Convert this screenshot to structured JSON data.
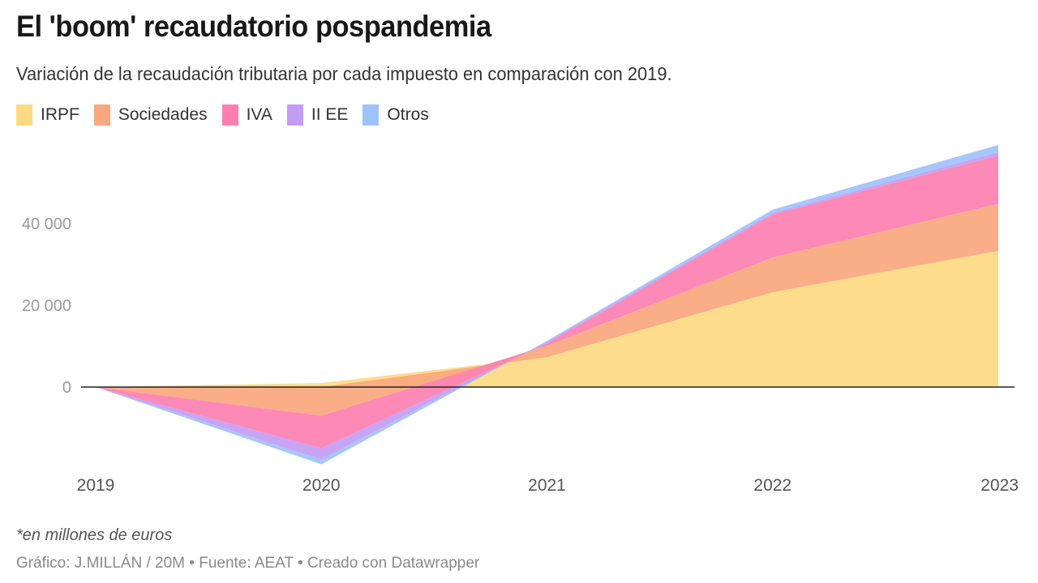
{
  "header": {
    "title": "El 'boom' recaudatorio pospandemia",
    "subtitle": "Variación de la recaudación tributaria por cada impuesto en comparación con 2019."
  },
  "footer": {
    "note": "*en millones de euros",
    "source": "Gráfico: J.MILLÁN / 20M • Fuente: AEAT • Creado con Datawrapper"
  },
  "chart_data": {
    "type": "area",
    "stacked": true,
    "title": "El 'boom' recaudatorio pospandemia",
    "subtitle": "Variación de la recaudación tributaria por cada impuesto en comparación con 2019.",
    "xlabel": "",
    "ylabel": "millones de euros",
    "x": [
      "2019",
      "2020",
      "2021",
      "2022",
      "2023"
    ],
    "ylim": [
      -20000,
      60000
    ],
    "yticks": [
      0,
      20000,
      40000
    ],
    "ytick_labels": [
      "0",
      "20 000",
      "40 000"
    ],
    "grid": false,
    "legend_position": "top-left",
    "series": [
      {
        "name": "IRPF",
        "color": "#fdda82",
        "values": [
          0,
          1000,
          7300,
          23200,
          33300
        ]
      },
      {
        "name": "Sociedades",
        "color": "#f8a77e",
        "values": [
          0,
          -7000,
          2800,
          8500,
          11500
        ]
      },
      {
        "name": "IVA",
        "color": "#fd7fb0",
        "values": [
          0,
          -8000,
          600,
          10500,
          11800
        ]
      },
      {
        "name": "II EE",
        "color": "#c39cf3",
        "values": [
          0,
          -2700,
          400,
          400,
          800
        ]
      },
      {
        "name": "Otros",
        "color": "#9ec2fd",
        "values": [
          0,
          -1200,
          200,
          800,
          1800
        ]
      }
    ]
  }
}
